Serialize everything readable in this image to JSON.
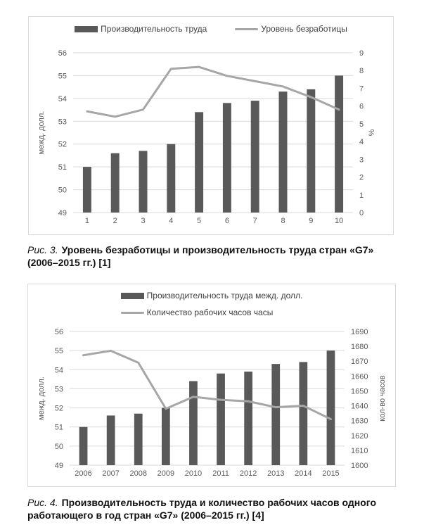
{
  "figures": [
    {
      "caption_prefix": "Рис. 3.",
      "caption_body": "Уровень безработицы и производительность труда стран «G7»\n(2006–2015 гг.) [1]"
    },
    {
      "caption_prefix": "Рис. 4.",
      "caption_body": "Производительность труда и количество рабочих часов одного\nработающего в год стран «G7» (2006–2015 гг.) [4]"
    }
  ],
  "colors": {
    "bar": "#595959",
    "line": "#a6a6a6",
    "grid": "#d9d9d9",
    "tick_text": "#595959",
    "legend_text": "#404040",
    "card_border": "#d9d9d9",
    "caption_text": "#111111"
  },
  "chart_data": [
    {
      "type": "bar",
      "subtype": "combo-bar-line",
      "title": "",
      "categories": [
        "1",
        "2",
        "3",
        "4",
        "5",
        "6",
        "7",
        "8",
        "9",
        "10"
      ],
      "series": [
        {
          "name": "Производительность труда",
          "kind": "bar",
          "axis": "left",
          "values": [
            51.0,
            51.6,
            51.7,
            52.0,
            53.4,
            53.8,
            53.9,
            54.3,
            54.4,
            55.0
          ]
        },
        {
          "name": "Уровень безработицы",
          "kind": "line",
          "axis": "right",
          "values": [
            5.7,
            5.4,
            5.8,
            8.1,
            8.2,
            7.7,
            7.4,
            7.1,
            6.5,
            5.8
          ]
        }
      ],
      "left_axis": {
        "title": "межд. долл.",
        "min": 49,
        "max": 56,
        "step": 1
      },
      "right_axis": {
        "title": "%",
        "min": 0,
        "max": 9,
        "step": 1
      },
      "grid": true,
      "legend_position": "top"
    },
    {
      "type": "bar",
      "subtype": "combo-bar-line",
      "title": "",
      "categories": [
        "2006",
        "2007",
        "2008",
        "2009",
        "2010",
        "2011",
        "2012",
        "2013",
        "2014",
        "2015"
      ],
      "series": [
        {
          "name": "Производительность труда межд. долл.",
          "kind": "bar",
          "axis": "left",
          "values": [
            51.0,
            51.6,
            51.7,
            52.0,
            53.4,
            53.8,
            53.9,
            54.3,
            54.4,
            55.0
          ]
        },
        {
          "name": "Количество рабочих часов часы",
          "kind": "line",
          "axis": "right",
          "values": [
            1674,
            1677,
            1669,
            1638,
            1646,
            1644,
            1643,
            1639,
            1640,
            1631
          ]
        }
      ],
      "left_axis": {
        "title": "межд. долл.",
        "min": 49,
        "max": 56,
        "step": 1
      },
      "right_axis": {
        "title": "кол-во часов",
        "min": 1600,
        "max": 1690,
        "step": 10
      },
      "grid": true,
      "legend_position": "top"
    }
  ]
}
